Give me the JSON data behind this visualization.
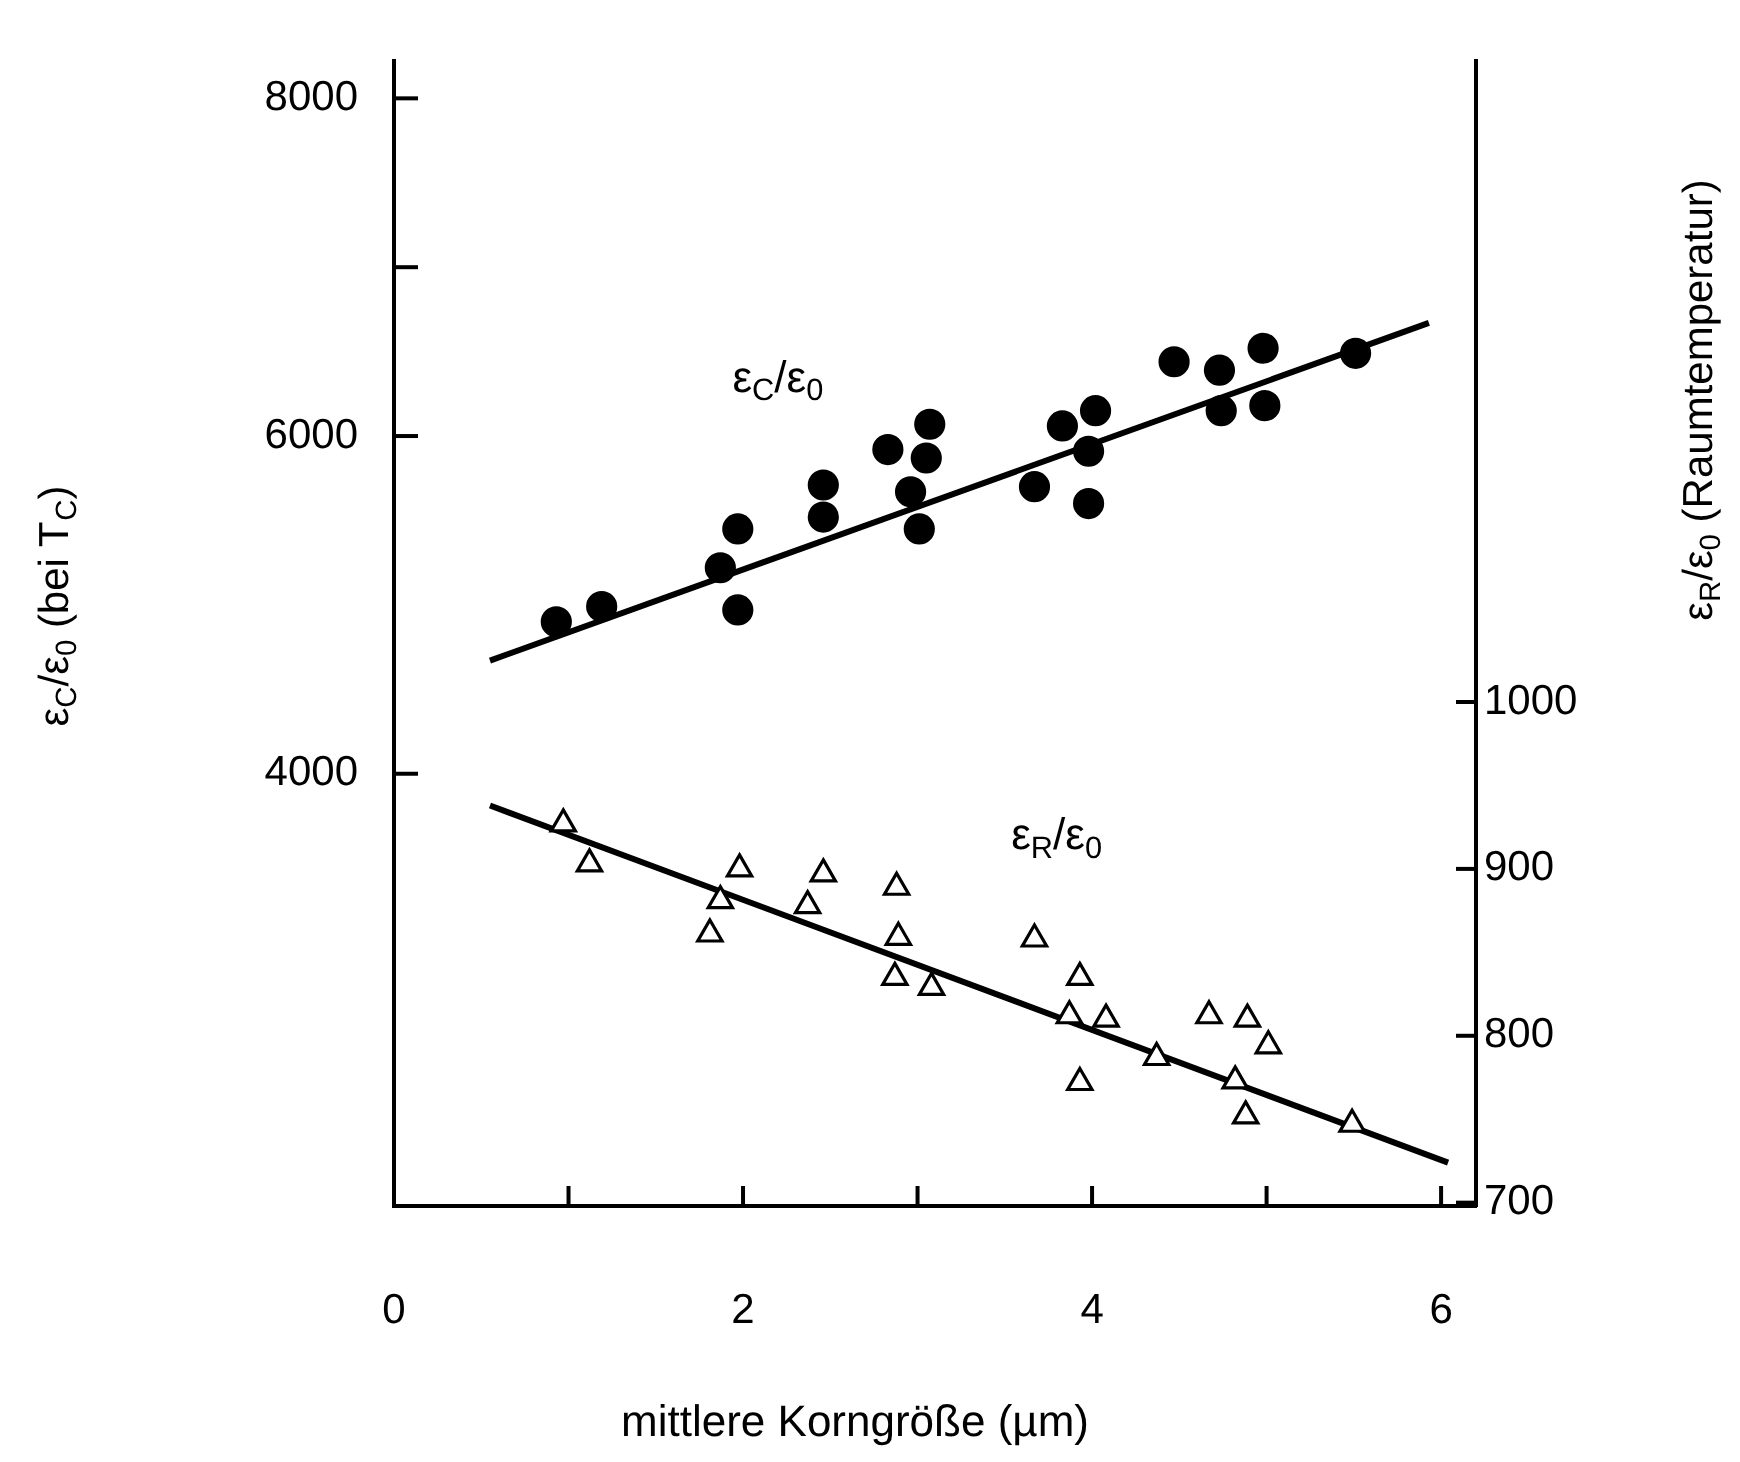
{
  "chart_data": {
    "type": "scatter",
    "xlabel": "mittlere Korngröße (µm)",
    "ylabel": "ε$_{C}$/ε$_{0}$ (bei T$_{C}$)",
    "y2label": "ε$_{R}$/ε$_{0}$ (Raumtemperatur)",
    "xlim": [
      0,
      6.2
    ],
    "xticks": [
      0,
      {
        "value": 1,
        "label": null
      },
      2,
      {
        "value": 3,
        "label": null
      },
      4,
      {
        "value": 5,
        "label": null
      },
      6
    ],
    "ylim": [
      1440,
      8220
    ],
    "yticks": [
      4000,
      6000,
      {
        "value": 7000,
        "label": null
      },
      8000
    ],
    "y2lim": [
      698,
      1384
    ],
    "y2ticks": [
      700,
      800,
      900,
      1000
    ],
    "grid": false,
    "legend": false,
    "series": [
      {
        "name": "ε$_{C}$/ε$_{0}$",
        "marker": "circle",
        "color": "#000000",
        "x": [
          0.93,
          1.19,
          1.87,
          1.97,
          1.97,
          2.46,
          2.46,
          2.83,
          3.07,
          3.05,
          2.96,
          3.01,
          3.67,
          3.83,
          4.02,
          3.98,
          3.98,
          4.47,
          4.73,
          4.74,
          4.98,
          4.99,
          5.51
        ],
        "values": [
          4900,
          4990,
          5220,
          5450,
          4970,
          5710,
          5520,
          5920,
          6070,
          5870,
          5670,
          5450,
          5700,
          6060,
          6150,
          5910,
          5600,
          6440,
          6390,
          6150,
          6520,
          6180,
          6490
        ]
      },
      {
        "type": "line",
        "marker": "none",
        "color": "#000000",
        "x": [
          0.55,
          5.93
        ],
        "values": [
          4670,
          6670
        ]
      },
      {
        "name": "ε$_{R}$/ε$_{0}$",
        "marker": "triangle",
        "axis": "y2",
        "color": "#000000",
        "x": [
          0.97,
          1.12,
          1.98,
          1.87,
          1.81,
          2.37,
          2.46,
          2.88,
          2.89,
          2.87,
          3.08,
          3.67,
          3.93,
          3.87,
          4.08,
          3.93,
          4.37,
          4.67,
          4.89,
          5.01,
          4.82,
          4.88,
          5.49
        ],
        "values": [
          927,
          903,
          900,
          881,
          861,
          878,
          897,
          889,
          859,
          835,
          829,
          858,
          835,
          812,
          810,
          772,
          787,
          812,
          810,
          794,
          773,
          752,
          747
        ]
      },
      {
        "type": "line",
        "marker": "none",
        "axis": "y2",
        "color": "#000000",
        "x": [
          0.55,
          6.04
        ],
        "values": [
          938,
          724
        ]
      }
    ]
  }
}
